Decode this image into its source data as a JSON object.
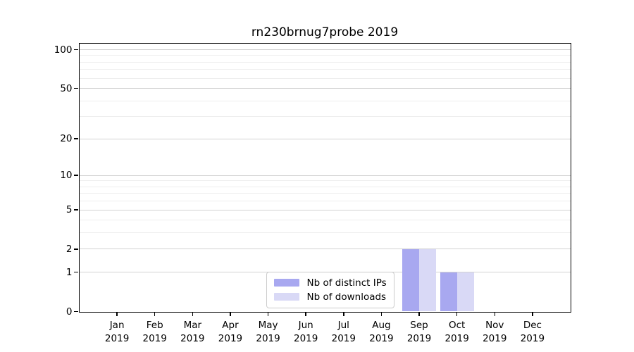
{
  "chart_data": {
    "type": "bar",
    "title": "rn230brnug7probe 2019",
    "categories": [
      "Jan 2019",
      "Feb 2019",
      "Mar 2019",
      "Apr 2019",
      "May 2019",
      "Jun 2019",
      "Jul 2019",
      "Aug 2019",
      "Sep 2019",
      "Oct 2019",
      "Nov 2019",
      "Dec 2019"
    ],
    "series": [
      {
        "name": "Nb of distinct IPs",
        "color": "#a8a8f0",
        "values": [
          0,
          0,
          0,
          0,
          0,
          0,
          0,
          0,
          2,
          1,
          0,
          0
        ]
      },
      {
        "name": "Nb of downloads",
        "color": "#d9d9f6",
        "values": [
          0,
          0,
          0,
          0,
          0,
          0,
          0,
          0,
          2,
          1,
          0,
          0
        ]
      }
    ],
    "xlabel": "",
    "ylabel": "",
    "yscale": "log1p",
    "ylim": [
      0,
      112
    ],
    "yticks": [
      0,
      1,
      2,
      5,
      10,
      20,
      50,
      100
    ],
    "yticks_minor": [
      3,
      4,
      6,
      7,
      8,
      9,
      30,
      40,
      60,
      70,
      80,
      90
    ],
    "grid": "horizontal",
    "legend_position": "lower center"
  },
  "colors": {
    "grid_major": "#d2d2d2",
    "grid_minor": "#eeeeee",
    "spine": "#000000",
    "background": "#ffffff"
  }
}
